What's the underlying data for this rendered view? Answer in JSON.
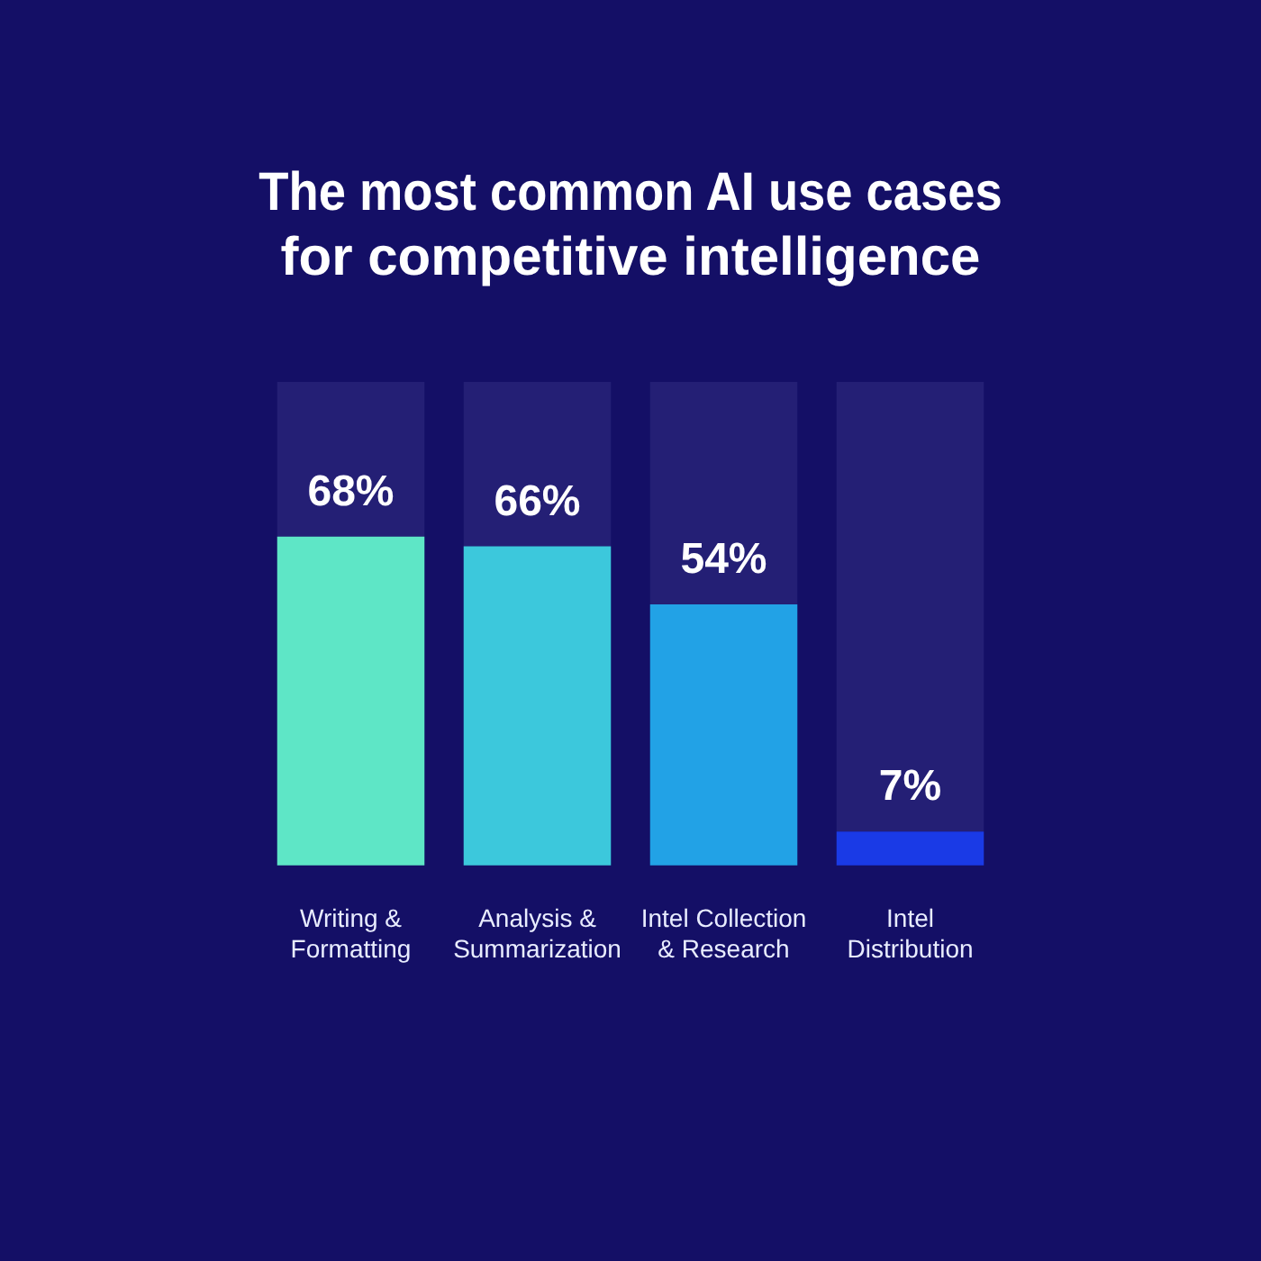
{
  "chart_data": {
    "type": "bar",
    "title": "The most common AI use cases for competitive intelligence",
    "categories": [
      "Writing & Formatting",
      "Analysis & Summarization",
      "Intel Collection & Research",
      "Intel Distribution"
    ],
    "series": [
      {
        "colors": [
          "#5ee6c6",
          "#3cc8dc",
          "#22a2e6",
          "#1a3ae6"
        ],
        "values": [
          68,
          66,
          54,
          7
        ],
        "value_labels": [
          "68%",
          "66%",
          "54%",
          "7%"
        ]
      },
      {
        "color": "#241f75",
        "values": [
          32,
          34,
          46,
          93
        ]
      }
    ],
    "stacked": true,
    "ylim": [
      0,
      100
    ],
    "grid": false,
    "legend": false
  }
}
